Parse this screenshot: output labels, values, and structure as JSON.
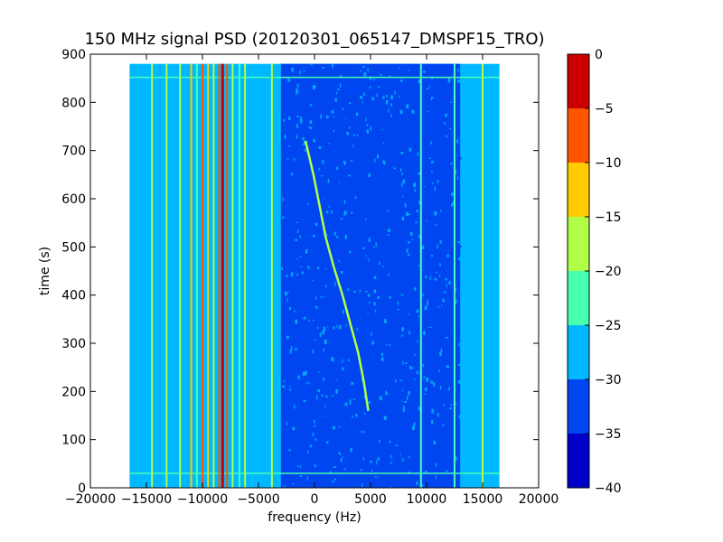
{
  "chart_data": {
    "type": "heatmap",
    "title": "150 MHz signal PSD (20120301_065147_DMSPF15_TRO)",
    "xlabel": "frequency (Hz)",
    "ylabel": "time (s)",
    "xlim": [
      -20000,
      20000
    ],
    "ylim": [
      0,
      900
    ],
    "xticks": [
      -20000,
      -15000,
      -10000,
      -5000,
      0,
      5000,
      10000,
      15000,
      20000
    ],
    "xtick_labels": [
      "−20000",
      "−15000",
      "−10000",
      "−5000",
      "0",
      "5000",
      "10000",
      "15000",
      "20000"
    ],
    "yticks": [
      0,
      100,
      200,
      300,
      400,
      500,
      600,
      700,
      800,
      900
    ],
    "ytick_labels": [
      "0",
      "100",
      "200",
      "300",
      "400",
      "500",
      "600",
      "700",
      "800",
      "900"
    ],
    "data_extent": {
      "x": [
        -16500,
        16500
      ],
      "y": [
        0,
        880
      ]
    },
    "colorbar": {
      "levels": [
        -40,
        -35,
        -30,
        -25,
        -20,
        -15,
        -10,
        -5,
        0
      ],
      "labels": [
        "−40",
        "−35",
        "−30",
        "−25",
        "−20",
        "−15",
        "−10",
        "−5",
        "0"
      ],
      "colors": [
        "#0000c8",
        "#0046f0",
        "#00b8ff",
        "#46ffb0",
        "#b0ff46",
        "#ffcc00",
        "#ff5500",
        "#cc0000"
      ]
    },
    "background_level": -27.5,
    "horizontal_lines": [
      {
        "time": 30,
        "level": -22
      },
      {
        "time": 852,
        "level": -22
      }
    ],
    "noise_band": {
      "x": [
        -3000,
        13000
      ],
      "level": -32
    },
    "vertical_lines": [
      {
        "frequency": -14500,
        "level": -17
      },
      {
        "frequency": -13200,
        "level": -17
      },
      {
        "frequency": -12000,
        "level": -17
      },
      {
        "frequency": -11000,
        "level": -12
      },
      {
        "frequency": -10500,
        "level": -22
      },
      {
        "frequency": -10000,
        "level": -7
      },
      {
        "frequency": -9500,
        "level": -12
      },
      {
        "frequency": -9000,
        "level": -17
      },
      {
        "frequency": -8500,
        "level": -7
      },
      {
        "frequency": -8200,
        "level": -2
      },
      {
        "frequency": -7800,
        "level": -7
      },
      {
        "frequency": -7300,
        "level": -17
      },
      {
        "frequency": -6700,
        "level": -22
      },
      {
        "frequency": -6200,
        "level": -17
      },
      {
        "frequency": -3800,
        "level": -17
      },
      {
        "frequency": 9500,
        "level": -22
      },
      {
        "frequency": 12500,
        "level": -22
      },
      {
        "frequency": 15000,
        "level": -17
      }
    ],
    "doppler_track": {
      "level": -17,
      "points": [
        {
          "t": 720,
          "f": -800
        },
        {
          "t": 650,
          "f": -100
        },
        {
          "t": 580,
          "f": 500
        },
        {
          "t": 520,
          "f": 1000
        },
        {
          "t": 460,
          "f": 1700
        },
        {
          "t": 400,
          "f": 2500
        },
        {
          "t": 340,
          "f": 3200
        },
        {
          "t": 280,
          "f": 3900
        },
        {
          "t": 220,
          "f": 4400
        },
        {
          "t": 160,
          "f": 4800
        }
      ]
    }
  }
}
